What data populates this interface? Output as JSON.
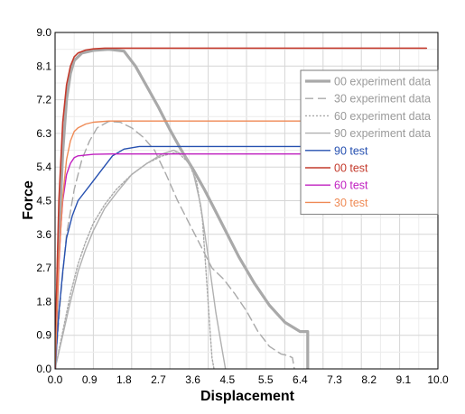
{
  "chart_data": {
    "type": "line",
    "title": "",
    "xlabel": "Displacement",
    "ylabel": "Force",
    "xlim": [
      0,
      10
    ],
    "ylim": [
      0,
      9
    ],
    "grid": true,
    "legend_position": "right",
    "x_ticks": [
      "0.0",
      "0.9",
      "1.8",
      "2.7",
      "3.6",
      "4.5",
      "5.5",
      "6.4",
      "7.3",
      "8.2",
      "9.1",
      "10.0"
    ],
    "x_tick_values": [
      0,
      0.9,
      1.8,
      2.7,
      3.6,
      4.5,
      5.5,
      6.4,
      7.3,
      8.2,
      9.1,
      10.0
    ],
    "y_ticks": [
      "0.0",
      "0.9",
      "1.8",
      "2.7",
      "3.6",
      "4.5",
      "5.4",
      "6.3",
      "7.2",
      "8.1",
      "9.0"
    ],
    "y_tick_values": [
      0,
      0.9,
      1.8,
      2.7,
      3.6,
      4.5,
      5.4,
      6.3,
      7.2,
      8.1,
      9.0
    ],
    "series": [
      {
        "name": "00 experiment data",
        "color": "#a9a9a9",
        "dash": "",
        "width": 3.2,
        "legend_text_color": "#9a9a9a",
        "x": [
          0,
          0.1,
          0.2,
          0.3,
          0.4,
          0.5,
          0.7,
          1.0,
          1.4,
          1.8,
          2.1,
          2.4,
          2.7,
          3.0,
          3.3,
          3.6,
          3.9,
          4.2,
          4.5,
          4.8,
          5.2,
          5.6,
          6.0,
          6.4,
          6.6,
          6.6
        ],
        "y": [
          0,
          3.5,
          5.8,
          7.2,
          7.9,
          8.25,
          8.45,
          8.52,
          8.55,
          8.5,
          8.1,
          7.55,
          7.0,
          6.4,
          5.85,
          5.35,
          4.8,
          4.2,
          3.6,
          3.0,
          2.3,
          1.7,
          1.25,
          1.0,
          1.0,
          0
        ]
      },
      {
        "name": "30 experiment data",
        "color": "#a9a9a9",
        "dash": "9,5",
        "width": 1.4,
        "legend_text_color": "#9a9a9a",
        "x": [
          0,
          0.15,
          0.3,
          0.5,
          0.7,
          0.9,
          1.1,
          1.4,
          1.7,
          2.0,
          2.3,
          2.6,
          2.9,
          3.2,
          3.5,
          3.8,
          4.1,
          4.4,
          4.7,
          5.0,
          5.3,
          5.6,
          5.9,
          6.1,
          6.2,
          6.25
        ],
        "y": [
          0,
          2.0,
          3.6,
          4.8,
          5.6,
          6.1,
          6.45,
          6.62,
          6.6,
          6.45,
          6.2,
          5.85,
          5.2,
          4.5,
          3.9,
          3.3,
          2.7,
          2.4,
          2.0,
          1.55,
          1.0,
          0.6,
          0.4,
          0.35,
          0.3,
          0
        ]
      },
      {
        "name": "60 experiment data",
        "color": "#a9a9a9",
        "dash": "2,2",
        "width": 1.4,
        "legend_text_color": "#9a9a9a",
        "x": [
          0,
          0.2,
          0.4,
          0.6,
          0.8,
          1.0,
          1.3,
          1.6,
          2.0,
          2.4,
          2.8,
          3.2,
          3.5,
          3.7,
          3.85,
          3.95,
          4.05,
          4.1,
          4.15
        ],
        "y": [
          0,
          1.0,
          2.0,
          2.8,
          3.4,
          3.9,
          4.4,
          4.8,
          5.2,
          5.5,
          5.7,
          5.8,
          5.5,
          5.0,
          4.0,
          2.5,
          1.0,
          0.3,
          0
        ]
      },
      {
        "name": "90 experiment data",
        "color": "#b0b0b0",
        "dash": "",
        "width": 1.4,
        "legend_text_color": "#9a9a9a",
        "x": [
          0,
          0.2,
          0.4,
          0.6,
          0.8,
          1.0,
          1.3,
          1.6,
          2.0,
          2.4,
          2.8,
          3.1,
          3.4,
          3.6,
          3.8,
          4.0,
          4.2,
          4.35,
          4.45
        ],
        "y": [
          0,
          0.9,
          1.8,
          2.6,
          3.2,
          3.7,
          4.3,
          4.7,
          5.2,
          5.5,
          5.75,
          5.85,
          5.7,
          5.3,
          4.4,
          3.0,
          1.5,
          0.6,
          0
        ]
      },
      {
        "name": "90 test",
        "color": "#2650b0",
        "dash": "",
        "width": 1.4,
        "legend_text_color": "#2650b0",
        "x": [
          0,
          0.1,
          0.2,
          0.3,
          0.45,
          0.6,
          0.9,
          1.2,
          1.5,
          1.8,
          2.2,
          2.6,
          3.0,
          3.6,
          10.0
        ],
        "y": [
          0,
          1.5,
          2.6,
          3.5,
          4.1,
          4.5,
          4.9,
          5.3,
          5.7,
          5.88,
          5.95,
          5.95,
          5.95,
          5.95,
          5.95
        ]
      },
      {
        "name": "00 test",
        "color": "#c43a2c",
        "dash": "",
        "width": 1.6,
        "legend_text_color": "#c43a2c",
        "x": [
          0,
          0.05,
          0.1,
          0.2,
          0.3,
          0.4,
          0.5,
          0.6,
          0.8,
          1.0,
          1.3,
          1.6,
          1.8,
          2.0,
          9.7
        ],
        "y": [
          0,
          2.5,
          4.5,
          6.6,
          7.6,
          8.1,
          8.35,
          8.45,
          8.53,
          8.56,
          8.58,
          8.58,
          8.58,
          8.58,
          8.58
        ]
      },
      {
        "name": "60 test",
        "color": "#c020c0",
        "dash": "",
        "width": 1.4,
        "legend_text_color": "#c020c0",
        "x": [
          0,
          0.05,
          0.1,
          0.15,
          0.2,
          0.3,
          0.4,
          0.5,
          0.6,
          0.8,
          1.0,
          1.5,
          10.0
        ],
        "y": [
          0,
          1.5,
          2.8,
          3.8,
          4.5,
          5.2,
          5.5,
          5.65,
          5.7,
          5.72,
          5.74,
          5.75,
          5.75
        ]
      },
      {
        "name": "30 test",
        "color": "#ef8a55",
        "dash": "",
        "width": 1.4,
        "legend_text_color": "#ef8a55",
        "x": [
          0,
          0.05,
          0.1,
          0.2,
          0.3,
          0.4,
          0.5,
          0.6,
          0.8,
          1.0,
          1.4,
          10.0
        ],
        "y": [
          0,
          1.5,
          2.9,
          4.6,
          5.6,
          6.1,
          6.35,
          6.45,
          6.55,
          6.6,
          6.63,
          6.63
        ]
      }
    ]
  }
}
